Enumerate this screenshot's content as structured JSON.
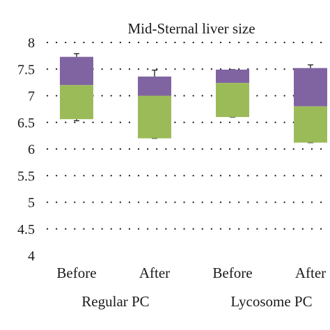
{
  "chart_data": {
    "type": "box",
    "title": "Mid-Sternal liver size",
    "xlabel": "",
    "ylabel": "",
    "ylim": [
      4,
      8
    ],
    "yticks": [
      4,
      4.5,
      5,
      5.5,
      6,
      6.5,
      7,
      7.5,
      8
    ],
    "grid": "dotted-horizontal",
    "colors": {
      "lower_box": "#9bbb59",
      "upper_box": "#8064a2",
      "whisker": "#1a1a1a"
    },
    "groups": [
      {
        "label": "Regular PC",
        "boxes": [
          {
            "label": "Before",
            "min": 6.53,
            "q1": 6.56,
            "median": 7.2,
            "q3": 7.73,
            "max": 7.79
          },
          {
            "label": "After",
            "min": 6.2,
            "q1": 6.2,
            "median": 7.0,
            "q3": 7.36,
            "max": 7.48
          }
        ]
      },
      {
        "label": "Lycosome PC",
        "boxes": [
          {
            "label": "Before",
            "min": 6.6,
            "q1": 6.6,
            "median": 7.24,
            "q3": 7.49,
            "max": 7.49
          },
          {
            "label": "After",
            "min": 6.12,
            "q1": 6.12,
            "median": 6.8,
            "q3": 7.52,
            "max": 7.58
          }
        ]
      }
    ]
  }
}
